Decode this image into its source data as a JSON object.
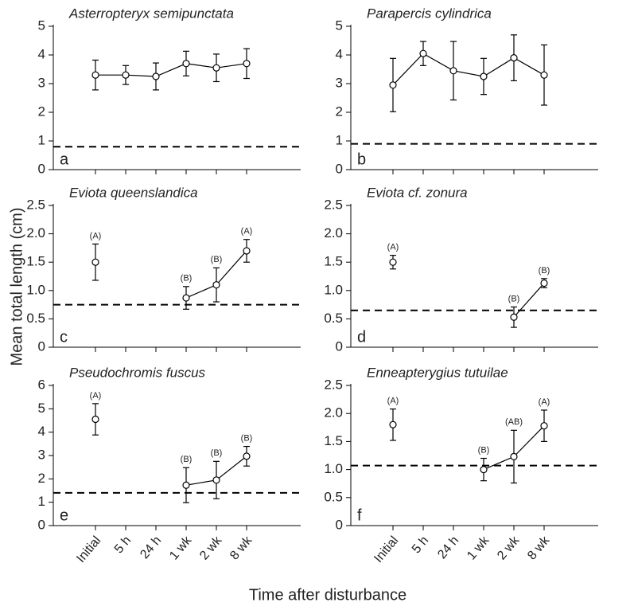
{
  "figure": {
    "xlabel": "Time after disturbance",
    "ylabel": "Mean total length (cm)"
  },
  "chart_data": [
    {
      "type": "line",
      "title": "Asterropteryx semipunctata",
      "panel": "a",
      "categories": [
        "Initial",
        "5 h",
        "24 h",
        "1 wk",
        "2 wk",
        "8 wk"
      ],
      "values": [
        3.3,
        3.3,
        3.25,
        3.7,
        3.55,
        3.7
      ],
      "errors": [
        0.52,
        0.33,
        0.47,
        0.43,
        0.48,
        0.52
      ],
      "reference_line": 0.8,
      "ylim": [
        0,
        5
      ],
      "yticks": [
        0,
        1,
        2,
        3,
        4,
        5
      ],
      "color": "#000000"
    },
    {
      "type": "line",
      "title": "Parapercis cylindrica",
      "panel": "b",
      "categories": [
        "Initial",
        "5 h",
        "24 h",
        "1 wk",
        "2 wk",
        "8 wk"
      ],
      "values": [
        2.95,
        4.05,
        3.45,
        3.25,
        3.9,
        3.3
      ],
      "errors": [
        0.93,
        0.42,
        1.02,
        0.63,
        0.8,
        1.05
      ],
      "reference_line": 0.9,
      "ylim": [
        0,
        5
      ],
      "yticks": [
        0,
        1,
        2,
        3,
        4,
        5
      ],
      "color": "#000000"
    },
    {
      "type": "line",
      "title": "Eviota queenslandica",
      "panel": "c",
      "categories": [
        "Initial",
        "5 h",
        "24 h",
        "1 wk",
        "2 wk",
        "8 wk"
      ],
      "values": [
        1.5,
        null,
        null,
        0.87,
        1.1,
        1.7
      ],
      "errors": [
        0.32,
        null,
        null,
        0.2,
        0.3,
        0.2
      ],
      "value_labels": [
        "(A)",
        null,
        null,
        "(B)",
        "(B)",
        "(A)"
      ],
      "reference_line": 0.75,
      "ylim": [
        0,
        2.5
      ],
      "yticks": [
        0,
        0.5,
        {
          "value": 1,
          "label": "1.0"
        },
        1.5,
        {
          "value": 2,
          "label": "2.0"
        },
        2.5
      ],
      "color": "#000000"
    },
    {
      "type": "line",
      "title": "Eviota cf. zonura",
      "panel": "d",
      "categories": [
        "Initial",
        "5 h",
        "24 h",
        "1 wk",
        "2 wk",
        "8 wk"
      ],
      "values": [
        1.5,
        null,
        null,
        null,
        0.53,
        1.13
      ],
      "errors": [
        0.12,
        null,
        null,
        null,
        0.18,
        0.08
      ],
      "value_labels": [
        "(A)",
        null,
        null,
        null,
        "(B)",
        "(B)"
      ],
      "reference_line": 0.65,
      "ylim": [
        0,
        2.5
      ],
      "yticks": [
        0,
        0.5,
        {
          "value": 1,
          "label": "1.0"
        },
        1.5,
        {
          "value": 2,
          "label": "2.0"
        },
        2.5
      ],
      "color": "#000000"
    },
    {
      "type": "line",
      "title": "Pseudochromis fuscus",
      "panel": "e",
      "categories": [
        "Initial",
        "5 h",
        "24 h",
        "1 wk",
        "2 wk",
        "8 wk"
      ],
      "values": [
        4.55,
        null,
        null,
        1.73,
        1.95,
        2.97
      ],
      "errors": [
        0.67,
        null,
        null,
        0.75,
        0.8,
        0.42
      ],
      "value_labels": [
        "(A)",
        null,
        null,
        "(B)",
        "(B)",
        "(B)"
      ],
      "reference_line": 1.4,
      "ylim": [
        0,
        6
      ],
      "yticks": [
        0,
        1,
        2,
        3,
        4,
        5,
        6
      ],
      "color": "#000000"
    },
    {
      "type": "line",
      "title": "Enneapterygius tutuilae",
      "panel": "f",
      "categories": [
        "Initial",
        "5 h",
        "24 h",
        "1 wk",
        "2 wk",
        "8 wk"
      ],
      "values": [
        1.8,
        null,
        null,
        1.0,
        1.23,
        1.78
      ],
      "errors": [
        0.28,
        null,
        null,
        0.2,
        0.47,
        0.28
      ],
      "value_labels": [
        "(A)",
        null,
        null,
        "(B)",
        "(AB)",
        "(A)"
      ],
      "reference_line": 1.07,
      "ylim": [
        0,
        2.5
      ],
      "yticks": [
        0,
        0.5,
        {
          "value": 1,
          "label": "1.0"
        },
        1.5,
        {
          "value": 2,
          "label": "2.0"
        },
        2.5
      ],
      "color": "#000000"
    }
  ]
}
